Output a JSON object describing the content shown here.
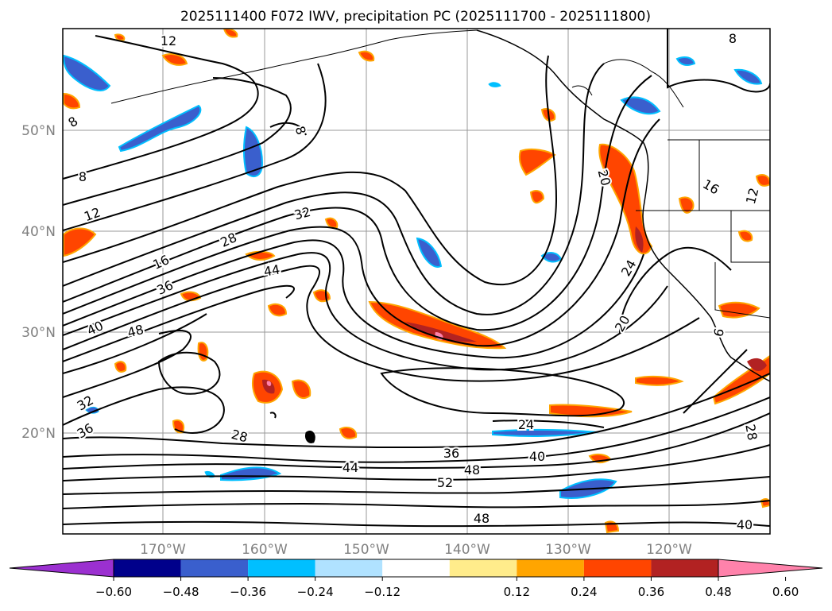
{
  "title": "2025111400 F072 IWV, precipitation PC (2025111700 - 2025111800)",
  "map": {
    "lat_labels": [
      "50°N",
      "40°N",
      "30°N",
      "20°N"
    ],
    "lon_labels": [
      "170°W",
      "160°W",
      "150°W",
      "140°W",
      "130°W",
      "120°W"
    ],
    "contour_labels": [
      "12",
      "8",
      "8",
      "8",
      "8",
      "12",
      "16",
      "32",
      "28",
      "44",
      "36",
      "40",
      "48",
      "32",
      "36",
      "28",
      "24",
      "20",
      "24",
      "20",
      "36",
      "48",
      "40",
      "52",
      "44",
      "48",
      "40",
      "28",
      "16",
      "12",
      "6"
    ]
  },
  "colorbar": {
    "ticks": [
      "−0.60",
      "−0.48",
      "−0.36",
      "−0.24",
      "−0.12",
      "0.12",
      "0.24",
      "0.36",
      "0.48",
      "0.60"
    ],
    "colors": [
      "#9b30d0",
      "#00008b",
      "#3a5fcd",
      "#00bfff",
      "#b0e2ff",
      "#ffffff",
      "#ffec8b",
      "#ffa500",
      "#ff4500",
      "#b22222",
      "#ff82ab"
    ]
  }
}
